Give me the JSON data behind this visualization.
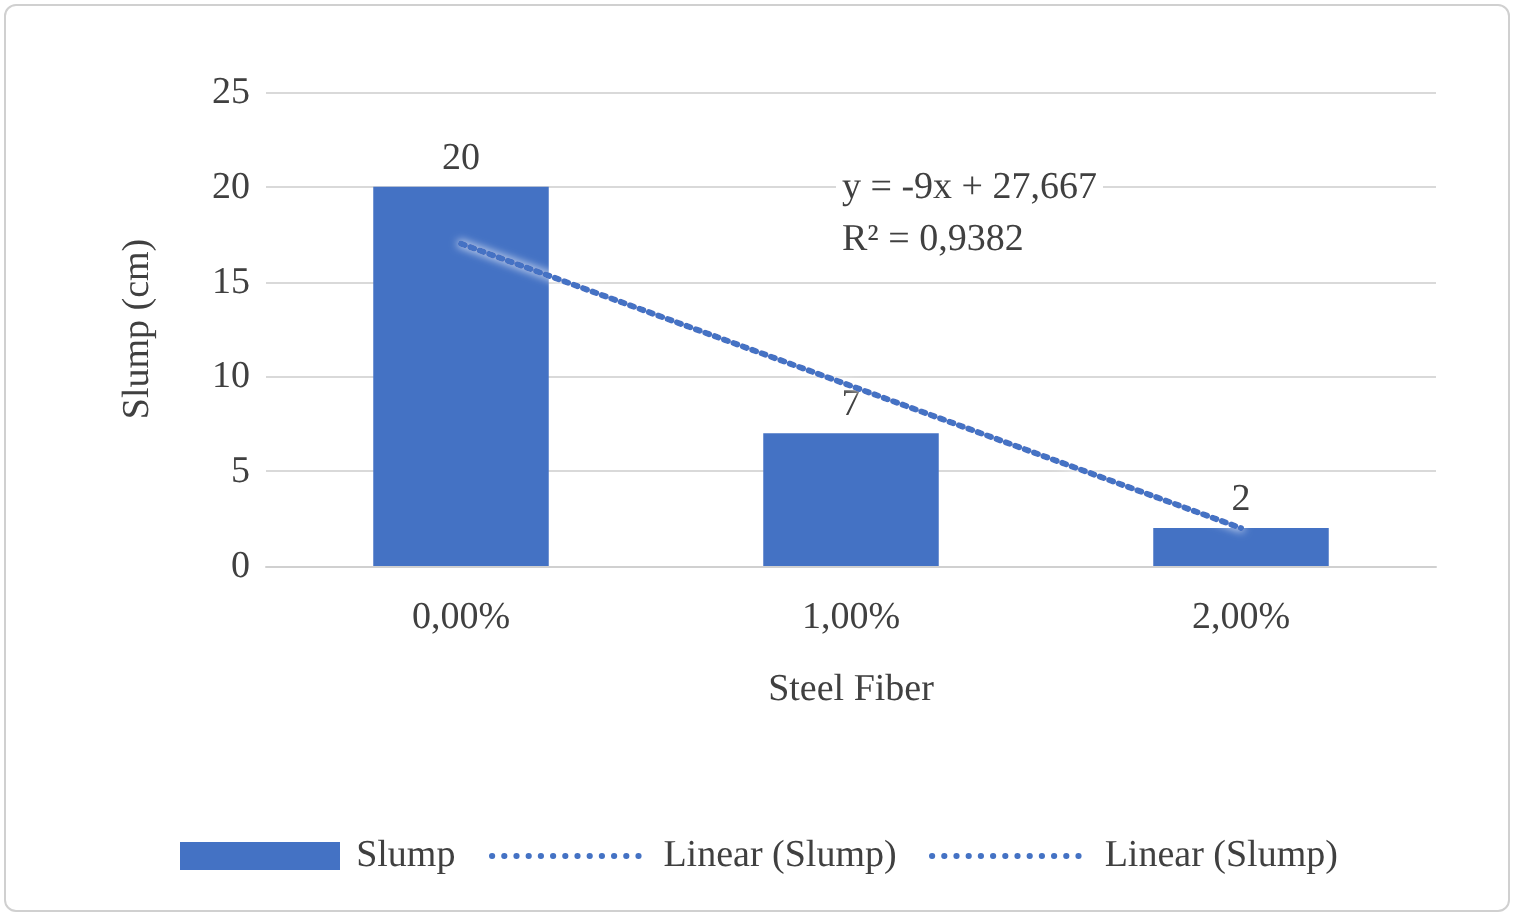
{
  "chart_data": {
    "type": "bar",
    "xlabel": "Steel Fiber",
    "ylabel": "Slump (cm)",
    "categories": [
      "0,00%",
      "1,00%",
      "2,00%"
    ],
    "series": [
      {
        "name": "Slump",
        "color": "#4472c4",
        "values": [
          20,
          7,
          2
        ],
        "value_labels": [
          "20",
          "7",
          "2"
        ]
      },
      {
        "name": "Linear (Slump)",
        "type": "line",
        "color": "#4472c4",
        "line_style": "dotted",
        "marker": "none",
        "values": [
          17,
          9.5,
          2
        ]
      },
      {
        "name": "Linear (Slump)",
        "type": "line",
        "color": "#4472c4",
        "line_style": "dotted",
        "marker": "none",
        "values": [
          null,
          null,
          null
        ]
      }
    ],
    "ylim": [
      0,
      25
    ],
    "yticks": [
      0,
      5,
      10,
      15,
      20,
      25
    ],
    "grid": "y",
    "legend": "bottom",
    "annotations": [
      "y = -9x + 27,667",
      "R² = 0,9382"
    ]
  }
}
